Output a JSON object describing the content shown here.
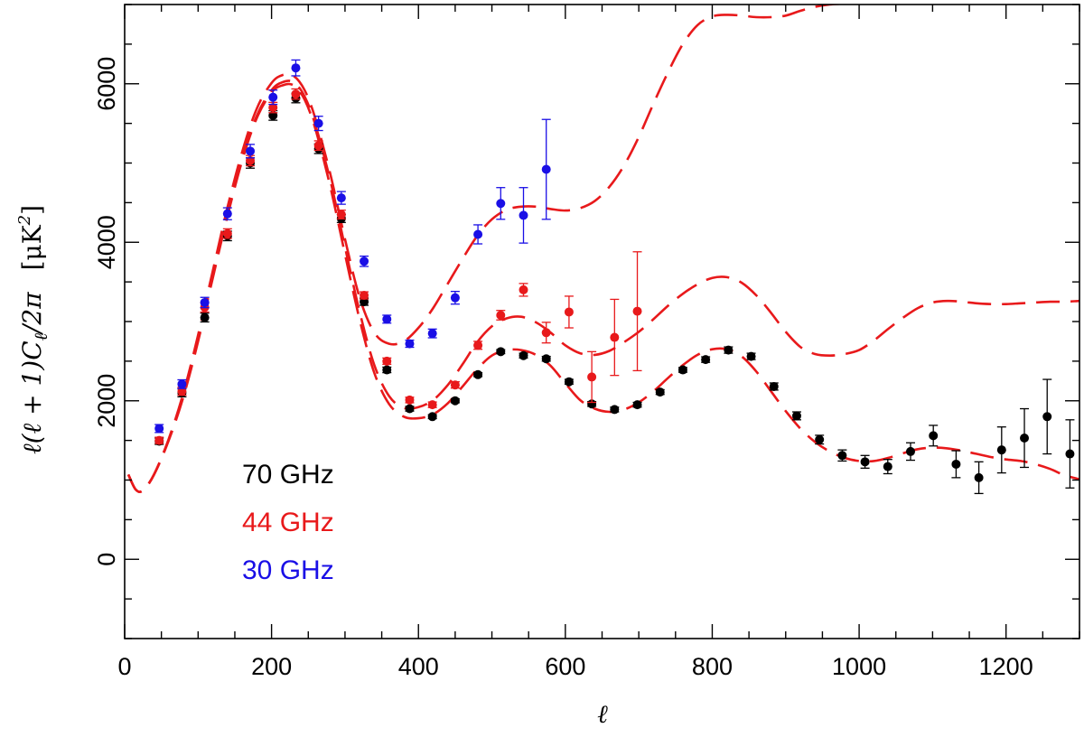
{
  "chart_data": {
    "type": "scatter",
    "title": "",
    "xlabel": "ℓ",
    "ylabel": "ℓ(ℓ + 1)C",
    "ylabel_sub": "ℓ",
    "ylabel_tail": "/2π",
    "yunit": "[μK",
    "yunit_sup": "2",
    "yunit_tail": "]",
    "xlim": [
      0,
      1300
    ],
    "ylim": [
      -1000,
      7000
    ],
    "xticks": [
      0,
      200,
      400,
      600,
      800,
      1000,
      1200
    ],
    "xtick_labels": [
      "0",
      "200",
      "400",
      "600",
      "800",
      "1000",
      "1200"
    ],
    "xminor_step": 50,
    "yticks": [
      0,
      2000,
      4000,
      6000
    ],
    "ytick_labels": [
      "0",
      "2000",
      "4000",
      "6000"
    ],
    "yminor_step": 500,
    "grid": false,
    "legend_position": "bottom-left",
    "legend": [
      {
        "label": "70 GHz",
        "color": "#000000"
      },
      {
        "label": "44 GHz",
        "color": "#e8191b"
      },
      {
        "label": "30 GHz",
        "color": "#1a0fe6"
      }
    ],
    "series": [
      {
        "name": "70 GHz",
        "color": "#000000",
        "x": [
          47,
          78,
          109,
          140,
          171,
          202,
          233,
          264,
          295,
          326,
          357,
          388,
          419,
          450,
          481,
          512,
          543,
          574,
          605,
          636,
          667,
          698,
          729,
          760,
          791,
          822,
          853,
          884,
          915,
          946,
          977,
          1008,
          1039,
          1070,
          1101,
          1132,
          1163,
          1194,
          1225,
          1256,
          1287
        ],
        "y": [
          1490,
          2100,
          3050,
          4080,
          5000,
          5600,
          5820,
          5180,
          4300,
          3250,
          2390,
          1900,
          1800,
          2000,
          2330,
          2620,
          2570,
          2530,
          2240,
          1960,
          1890,
          1950,
          2110,
          2390,
          2520,
          2640,
          2560,
          2180,
          1810,
          1510,
          1310,
          1230,
          1170,
          1360,
          1560,
          1200,
          1030,
          1380,
          1530,
          1800,
          1330
        ],
        "err": [
          40,
          50,
          55,
          60,
          65,
          60,
          60,
          60,
          50,
          45,
          35,
          30,
          25,
          25,
          25,
          25,
          30,
          30,
          30,
          30,
          30,
          30,
          30,
          30,
          35,
          40,
          40,
          45,
          50,
          55,
          70,
          80,
          90,
          110,
          130,
          170,
          200,
          290,
          370,
          470,
          430
        ]
      },
      {
        "name": "44 GHz",
        "color": "#e8191b",
        "x": [
          47,
          78,
          109,
          140,
          171,
          202,
          233,
          264,
          295,
          326,
          357,
          388,
          419,
          450,
          481,
          512,
          543,
          574,
          605,
          636,
          667,
          698
        ],
        "y": [
          1500,
          2120,
          3180,
          4110,
          5030,
          5700,
          5870,
          5220,
          4350,
          3330,
          2500,
          2010,
          1950,
          2200,
          2700,
          3080,
          3400,
          2860,
          3120,
          2300,
          2800,
          3130
        ],
        "err": [
          40,
          50,
          60,
          60,
          65,
          65,
          65,
          60,
          55,
          45,
          40,
          35,
          35,
          40,
          50,
          60,
          80,
          130,
          200,
          320,
          480,
          750
        ]
      },
      {
        "name": "30 GHz",
        "color": "#1a0fe6",
        "x": [
          47,
          78,
          109,
          140,
          171,
          202,
          233,
          264,
          295,
          326,
          357,
          388,
          419,
          450,
          481,
          512,
          543,
          574
        ],
        "y": [
          1650,
          2210,
          3240,
          4360,
          5150,
          5830,
          6200,
          5500,
          4560,
          3760,
          3030,
          2720,
          2850,
          3300,
          4100,
          4490,
          4340,
          4920
        ],
        "err": [
          50,
          55,
          65,
          75,
          85,
          90,
          100,
          90,
          80,
          65,
          50,
          45,
          55,
          80,
          120,
          200,
          350,
          630
        ]
      }
    ],
    "model_curves": [
      {
        "name": "model 70 GHz",
        "color": "#e8191b",
        "style": "dashed",
        "x": [
          5,
          15,
          25,
          40,
          60,
          80,
          100,
          120,
          140,
          160,
          180,
          200,
          215,
          230,
          245,
          260,
          280,
          300,
          320,
          340,
          360,
          380,
          400,
          420,
          440,
          460,
          480,
          500,
          520,
          540,
          560,
          580,
          600,
          620,
          640,
          660,
          680,
          700,
          720,
          740,
          760,
          780,
          800,
          820,
          840,
          860,
          880,
          900,
          920,
          940,
          960,
          980,
          1000,
          1020,
          1040,
          1060,
          1080,
          1100,
          1120,
          1140,
          1160,
          1180,
          1200,
          1220,
          1240,
          1260,
          1280,
          1300
        ],
        "y": [
          1070,
          880,
          870,
          1070,
          1500,
          2050,
          2750,
          3550,
          4330,
          5030,
          5570,
          5890,
          5980,
          5980,
          5800,
          5420,
          4700,
          3850,
          3020,
          2350,
          1960,
          1800,
          1780,
          1830,
          1970,
          2180,
          2400,
          2570,
          2640,
          2640,
          2580,
          2440,
          2220,
          2010,
          1900,
          1860,
          1890,
          1980,
          2120,
          2290,
          2450,
          2580,
          2650,
          2650,
          2560,
          2370,
          2120,
          1870,
          1650,
          1480,
          1360,
          1280,
          1240,
          1240,
          1280,
          1340,
          1390,
          1410,
          1400,
          1370,
          1330,
          1290,
          1260,
          1240,
          1200,
          1140,
          1060,
          1010
        ]
      },
      {
        "name": "model 44 GHz",
        "color": "#e8191b",
        "style": "dashed",
        "x": [
          5,
          15,
          25,
          40,
          60,
          80,
          100,
          120,
          140,
          160,
          180,
          200,
          215,
          230,
          245,
          260,
          280,
          300,
          320,
          340,
          360,
          380,
          400,
          420,
          440,
          460,
          480,
          500,
          520,
          540,
          560,
          580,
          600,
          620,
          640,
          660,
          680,
          700,
          720,
          740,
          760,
          780,
          800,
          820,
          840,
          860,
          880,
          900,
          920,
          940,
          960,
          980,
          1000,
          1020,
          1040,
          1060,
          1080,
          1100,
          1120,
          1140,
          1160,
          1180,
          1200,
          1220,
          1240,
          1260,
          1280,
          1300
        ],
        "y": [
          1070,
          880,
          870,
          1070,
          1510,
          2070,
          2780,
          3580,
          4370,
          5060,
          5600,
          5920,
          6020,
          6020,
          5840,
          5470,
          4780,
          3940,
          3120,
          2450,
          2060,
          1910,
          1920,
          2010,
          2200,
          2460,
          2740,
          2940,
          3040,
          3060,
          2990,
          2860,
          2700,
          2600,
          2580,
          2630,
          2740,
          2870,
          3030,
          3200,
          3350,
          3470,
          3550,
          3560,
          3490,
          3330,
          3110,
          2870,
          2680,
          2590,
          2570,
          2590,
          2640,
          2760,
          2910,
          3050,
          3170,
          3240,
          3260,
          3250,
          3230,
          3220,
          3220,
          3230,
          3240,
          3250,
          3250,
          3260
        ]
      },
      {
        "name": "model 30 GHz",
        "color": "#e8191b",
        "style": "dashed",
        "x": [
          5,
          15,
          25,
          40,
          60,
          80,
          100,
          120,
          140,
          160,
          180,
          200,
          215,
          230,
          245,
          260,
          280,
          300,
          320,
          340,
          360,
          380,
          400,
          420,
          440,
          460,
          480,
          500,
          520,
          540,
          560,
          580,
          600,
          620,
          640,
          660,
          680,
          700,
          720,
          740,
          760,
          780,
          800,
          820,
          840,
          860,
          880,
          900,
          920,
          940,
          960,
          980
        ],
        "y": [
          1070,
          880,
          870,
          1070,
          1520,
          2100,
          2830,
          3640,
          4440,
          5140,
          5690,
          6010,
          6110,
          6100,
          5920,
          5550,
          4860,
          4040,
          3300,
          2860,
          2720,
          2750,
          2920,
          3170,
          3480,
          3790,
          4080,
          4290,
          4410,
          4450,
          4450,
          4420,
          4400,
          4430,
          4520,
          4700,
          4970,
          5330,
          5750,
          6150,
          6500,
          6740,
          6850,
          6870,
          6860,
          6840,
          6840,
          6860,
          6920,
          6970,
          7000,
          7010
        ]
      }
    ]
  }
}
